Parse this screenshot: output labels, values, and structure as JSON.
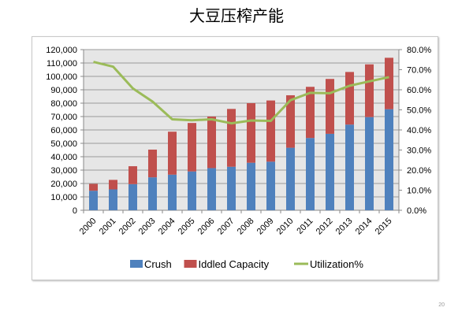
{
  "page_number": "20",
  "chart_data": {
    "type": "bar",
    "subtype": "stacked-bar-with-line",
    "title": "大豆压榨产能",
    "categories": [
      "2000",
      "2001",
      "2002",
      "2003",
      "2004",
      "2005",
      "2006",
      "2007",
      "2008",
      "2009",
      "2010",
      "2011",
      "2012",
      "2013",
      "2014",
      "2015"
    ],
    "series": [
      {
        "name": "Crush",
        "axis": "left",
        "kind": "bar",
        "color": "#4f81bd",
        "values": [
          14600,
          15600,
          19500,
          24600,
          26600,
          29000,
          31500,
          32500,
          35500,
          36300,
          46700,
          54000,
          57100,
          64000,
          69600,
          75500
        ]
      },
      {
        "name": "Iddled Capacity",
        "axis": "left",
        "kind": "bar",
        "color": "#c0504d",
        "values": [
          5100,
          7100,
          13400,
          20700,
          32100,
          36200,
          38500,
          43200,
          44500,
          45700,
          39200,
          38200,
          41000,
          39300,
          39400,
          38400
        ]
      },
      {
        "name": "Utilization%",
        "axis": "right",
        "kind": "line",
        "color": "#9bbb59",
        "values": [
          73.9,
          71.5,
          60.7,
          54.1,
          45.3,
          44.8,
          45.3,
          43.3,
          44.7,
          44.5,
          54.8,
          58.5,
          58.3,
          62.0,
          64.2,
          66.3
        ]
      }
    ],
    "left_axis": {
      "ylim": [
        0,
        120000
      ],
      "ticks": [
        "0",
        "10,000",
        "20,000",
        "30,000",
        "40,000",
        "50,000",
        "60,000",
        "70,000",
        "80,000",
        "90,000",
        "100,000",
        "110,000",
        "120,000"
      ]
    },
    "right_axis": {
      "ylim": [
        0,
        80
      ],
      "ticks": [
        "0.0%",
        "10.0%",
        "20.0%",
        "30.0%",
        "40.0%",
        "50.0%",
        "60.0%",
        "70.0%",
        "80.0%"
      ]
    },
    "xlabel": "",
    "ylabel": "",
    "grid": true,
    "legend": "bottom",
    "plot_bg": "#e6e6e6"
  }
}
